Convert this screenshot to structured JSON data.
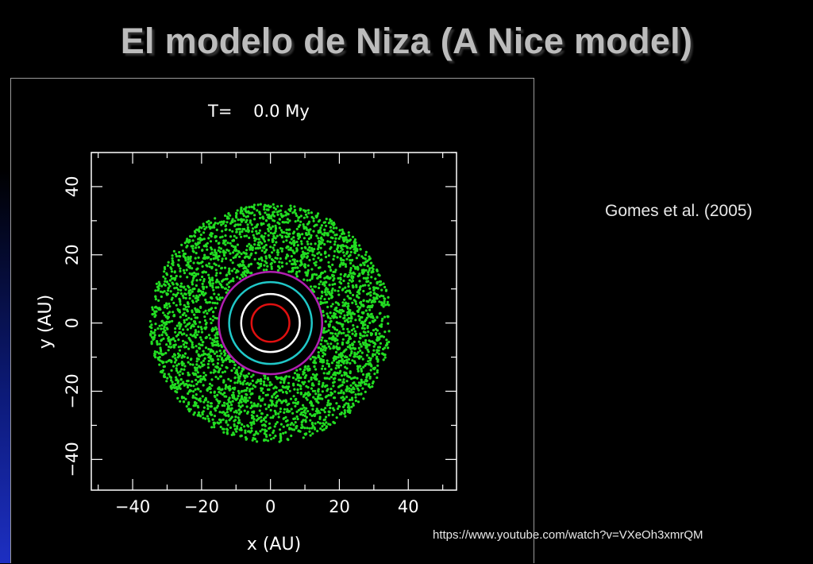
{
  "slide": {
    "title": "El modelo de Niza (A Nice model)",
    "citation": "Gomes et al. (2005)",
    "url": "https://www.youtube.com/watch?v=VXeOh3xmrQM",
    "colors": {
      "background": "#000000",
      "title": "#bcbcbc",
      "band": "#1d2fc2"
    }
  },
  "chart_data": {
    "type": "scatter",
    "title": "T=    0.0 My",
    "xlabel": "x (AU)",
    "ylabel": "y (AU)",
    "xlim": [
      -52,
      54
    ],
    "ylim": [
      -49,
      50
    ],
    "xticks": [
      -40,
      -20,
      0,
      20,
      40
    ],
    "yticks": [
      40,
      20,
      0,
      -20,
      -40
    ],
    "xtick_labels": [
      "−40",
      "−20",
      "0",
      "20",
      "40"
    ],
    "ytick_labels": [
      "40",
      "20",
      "0",
      "−20",
      "−40"
    ],
    "grid": false,
    "planet_orbits": [
      {
        "color": "#e01010",
        "radius_au": 5.5
      },
      {
        "color": "#ffffff",
        "radius_au": 8.5
      },
      {
        "color": "#20c8c8",
        "radius_au": 12.0
      },
      {
        "color": "#b020b0",
        "radius_au": 15.0
      }
    ],
    "planetesimal_disk": {
      "color": "#22dd22",
      "inner_radius_au": 15.5,
      "outer_radius_au": 35.0,
      "center": [
        0,
        0
      ]
    }
  }
}
